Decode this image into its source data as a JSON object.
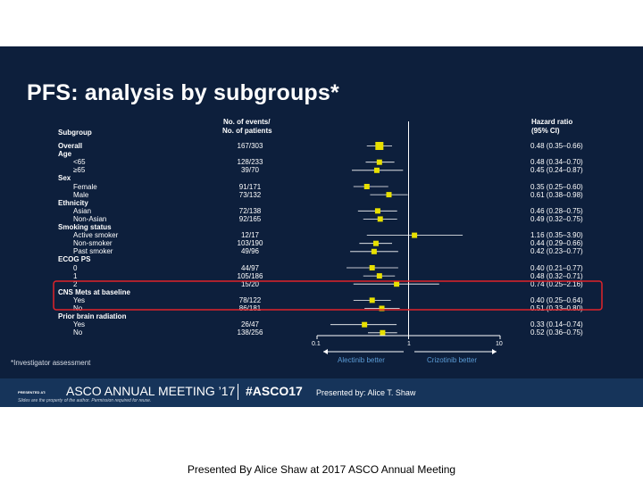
{
  "slide": {
    "title": "PFS: analysis by subgroups*",
    "headers": {
      "subgroup": "Subgroup",
      "events_line1": "No. of events/",
      "events_line2": "No. of patients",
      "hr_line1": "Hazard ratio",
      "hr_line2": "(95% CI)"
    },
    "axis": {
      "ticks": [
        "0.1",
        "1",
        "10"
      ],
      "scale": "log",
      "range": [
        0.1,
        10
      ]
    },
    "direction": {
      "left": "Alectinib better",
      "right": "Crizotinib better",
      "left_color": "#5b9bd5",
      "right_color": "#5b9bd5"
    },
    "footnote": "*Investigator assessment",
    "highlight_color": "#e0242a",
    "marker_color": "#e8e000",
    "rows": [
      {
        "label": "Overall",
        "group": true,
        "events": "167/303",
        "hr_text": "0.48 (0.35–0.66)",
        "hr": 0.48,
        "lo": 0.35,
        "hi": 0.66
      },
      {
        "label": "Age",
        "group": true,
        "events": "",
        "hr_text": ""
      },
      {
        "label": "<65",
        "group": false,
        "events": "128/233",
        "hr_text": "0.48 (0.34–0.70)",
        "hr": 0.48,
        "lo": 0.34,
        "hi": 0.7
      },
      {
        "label": "≥65",
        "group": false,
        "events": "39/70",
        "hr_text": "0.45 (0.24–0.87)",
        "hr": 0.45,
        "lo": 0.24,
        "hi": 0.87
      },
      {
        "label": "Sex",
        "group": true,
        "events": "",
        "hr_text": ""
      },
      {
        "label": "Female",
        "group": false,
        "events": "91/171",
        "hr_text": "0.35 (0.25–0.60)",
        "hr": 0.35,
        "lo": 0.25,
        "hi": 0.6
      },
      {
        "label": "Male",
        "group": false,
        "events": "73/132",
        "hr_text": "0.61 (0.38–0.98)",
        "hr": 0.61,
        "lo": 0.38,
        "hi": 0.98
      },
      {
        "label": "Ethnicity",
        "group": true,
        "events": "",
        "hr_text": ""
      },
      {
        "label": "Asian",
        "group": false,
        "events": "72/138",
        "hr_text": "0.46 (0.28–0.75)",
        "hr": 0.46,
        "lo": 0.28,
        "hi": 0.75
      },
      {
        "label": "Non-Asian",
        "group": false,
        "events": "92/165",
        "hr_text": "0.49 (0.32–0.75)",
        "hr": 0.49,
        "lo": 0.32,
        "hi": 0.75
      },
      {
        "label": "Smoking status",
        "group": true,
        "events": "",
        "hr_text": ""
      },
      {
        "label": "Active smoker",
        "group": false,
        "events": "12/17",
        "hr_text": "1.16 (0.35–3.90)",
        "hr": 1.16,
        "lo": 0.35,
        "hi": 3.9
      },
      {
        "label": "Non-smoker",
        "group": false,
        "events": "103/190",
        "hr_text": "0.44 (0.29–0.66)",
        "hr": 0.44,
        "lo": 0.29,
        "hi": 0.66
      },
      {
        "label": "Past smoker",
        "group": false,
        "events": "49/96",
        "hr_text": "0.42 (0.23–0.77)",
        "hr": 0.42,
        "lo": 0.23,
        "hi": 0.77
      },
      {
        "label": "ECOG PS",
        "group": true,
        "events": "",
        "hr_text": ""
      },
      {
        "label": "0",
        "group": false,
        "events": "44/97",
        "hr_text": "0.40 (0.21–0.77)",
        "hr": 0.4,
        "lo": 0.21,
        "hi": 0.77
      },
      {
        "label": "1",
        "group": false,
        "events": "105/186",
        "hr_text": "0.48 (0.32–0.71)",
        "hr": 0.48,
        "lo": 0.32,
        "hi": 0.71
      },
      {
        "label": "2",
        "group": false,
        "events": "15/20",
        "hr_text": "0.74 (0.25–2.16)",
        "hr": 0.74,
        "lo": 0.25,
        "hi": 2.16
      },
      {
        "label": "CNS Mets at baseline",
        "group": true,
        "events": "",
        "hr_text": ""
      },
      {
        "label": "Yes",
        "group": false,
        "events": "78/122",
        "hr_text": "0.40 (0.25–0.64)",
        "hr": 0.4,
        "lo": 0.25,
        "hi": 0.64
      },
      {
        "label": "No",
        "group": false,
        "events": "86/181",
        "hr_text": "0.51 (0.33–0.80)",
        "hr": 0.51,
        "lo": 0.33,
        "hi": 0.8
      },
      {
        "label": "Prior brain radiation",
        "group": true,
        "events": "",
        "hr_text": ""
      },
      {
        "label": "Yes",
        "group": false,
        "events": "26/47",
        "hr_text": "0.33 (0.14–0.74)",
        "hr": 0.33,
        "lo": 0.14,
        "hi": 0.74
      },
      {
        "label": "No",
        "group": false,
        "events": "138/256",
        "hr_text": "0.52 (0.36–0.75)",
        "hr": 0.52,
        "lo": 0.36,
        "hi": 0.75
      }
    ]
  },
  "banner": {
    "presented_at": "PRESENTED AT:",
    "meeting": "ASCO ANNUAL MEETING ’17",
    "hashtag": "#ASCO17",
    "presented_by": "Presented by: Alice T. Shaw",
    "disclaimer": "Slides are the property of the author. Permission required for reuse."
  },
  "caption": "Presented By Alice Shaw at 2017 ASCO Annual Meeting"
}
